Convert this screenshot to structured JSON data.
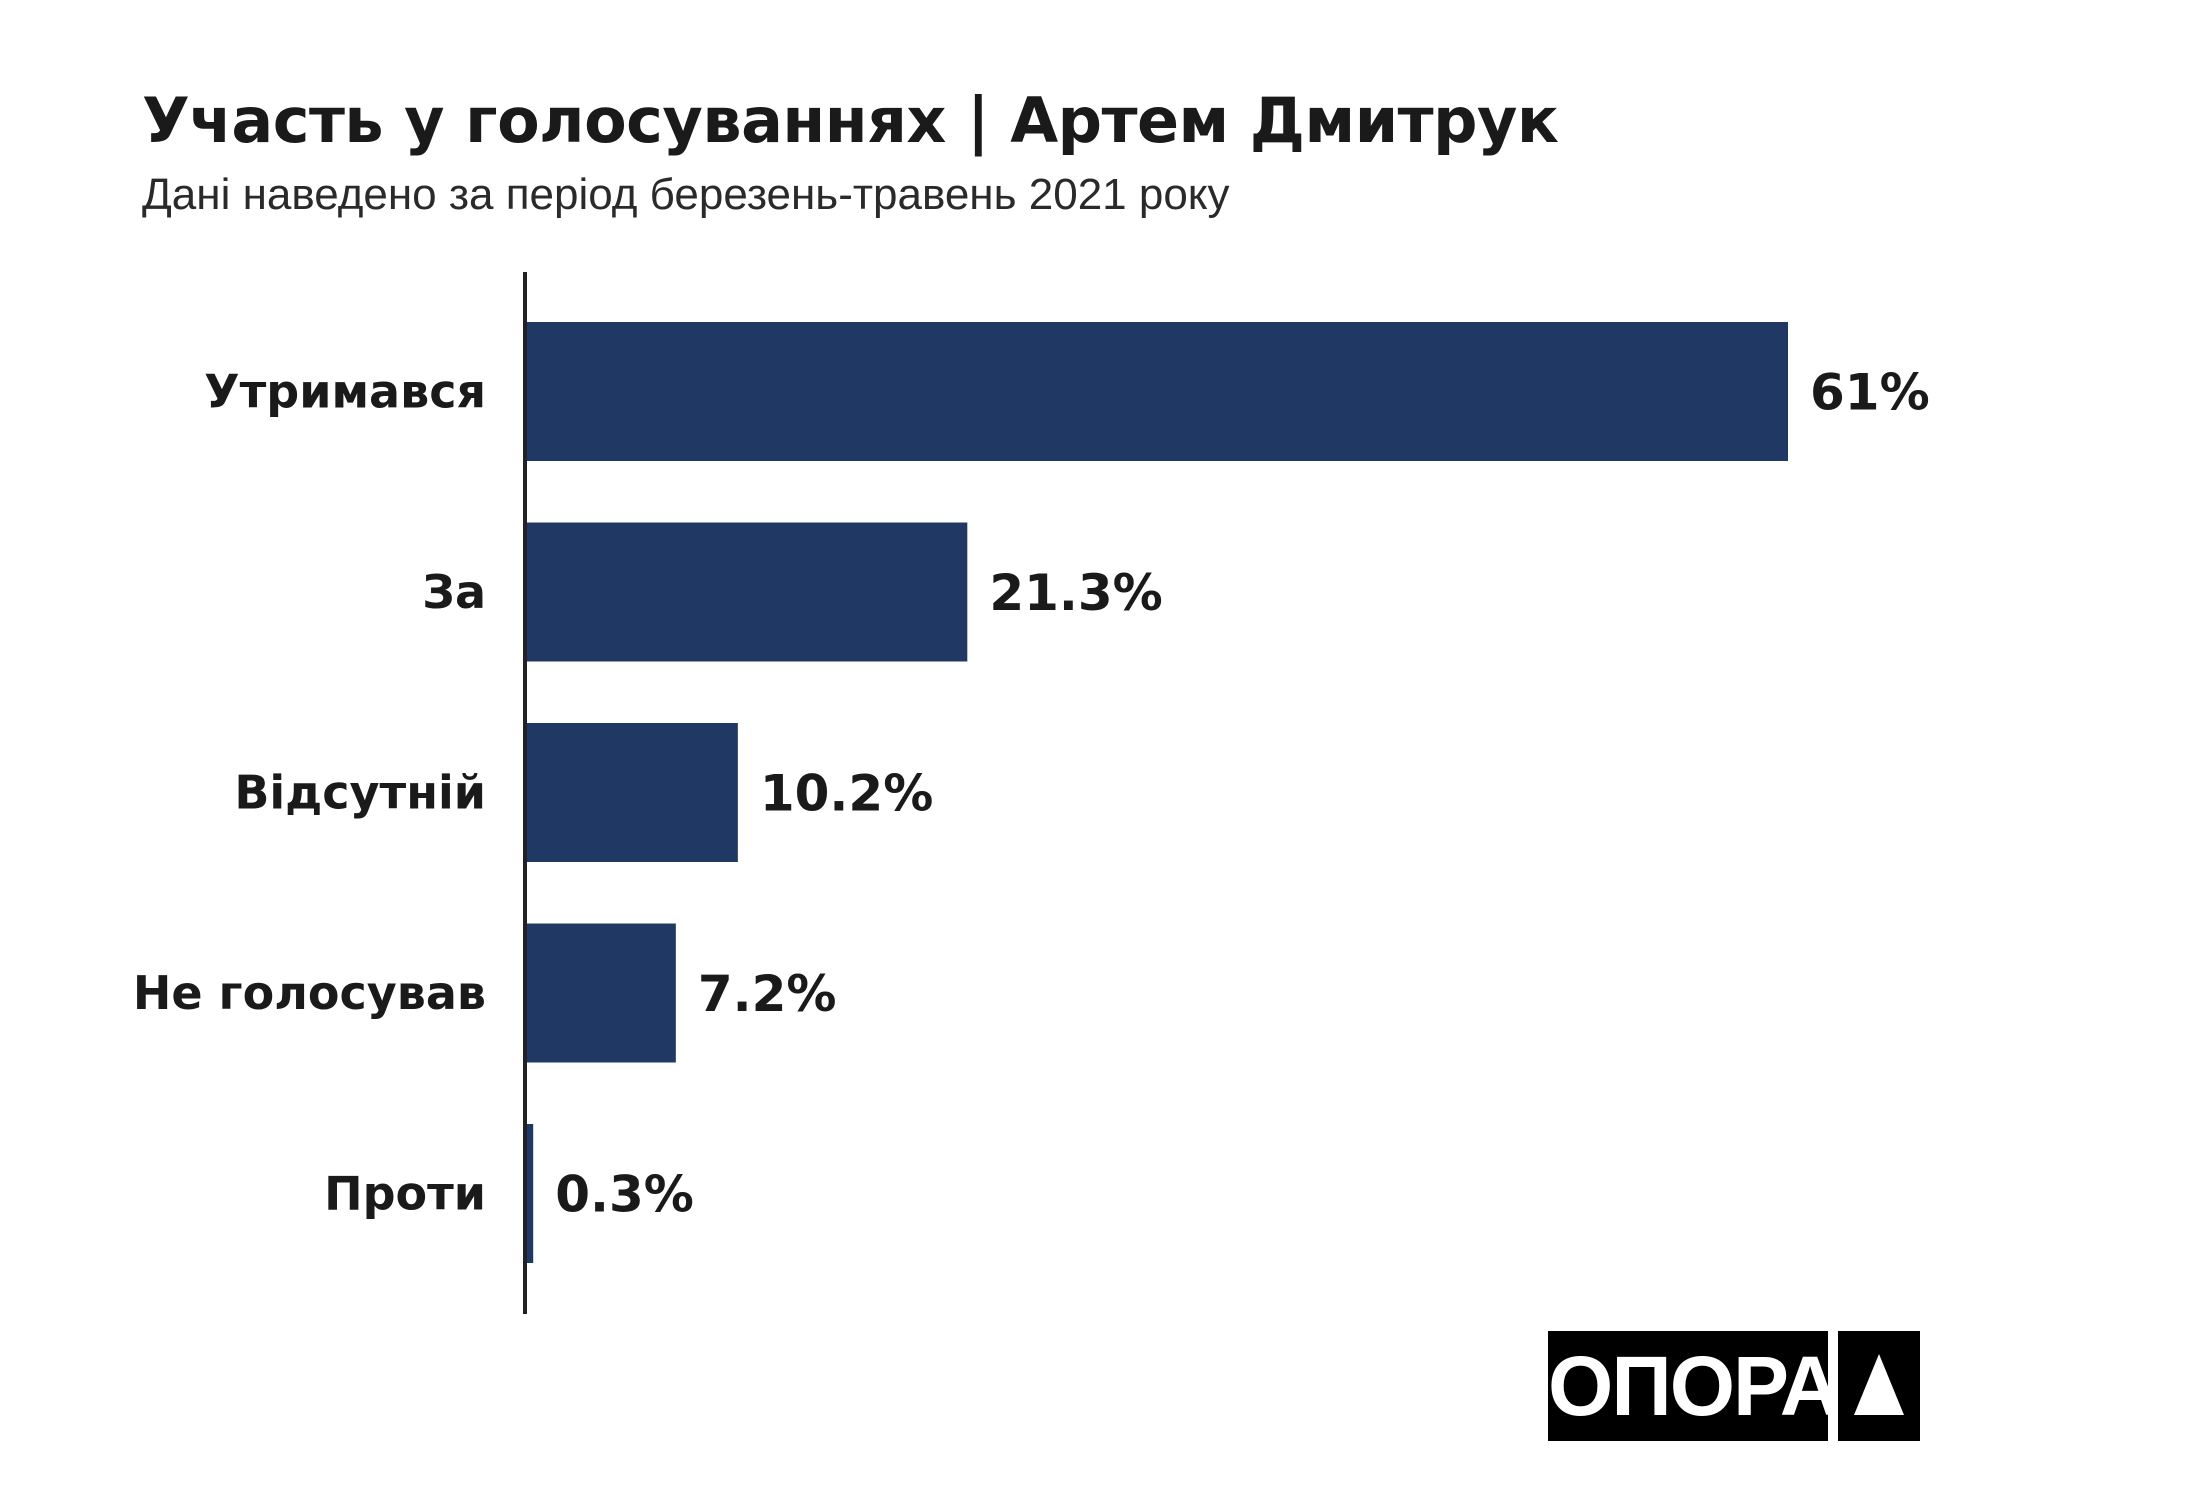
{
  "chart_data": {
    "type": "bar",
    "orientation": "horizontal",
    "title": "Участь у голосуваннях | Артем Дмитрук",
    "subtitle": "Дані наведено за період березень-травень 2021 року",
    "categories": [
      "Утримався",
      "За",
      "Відсутній",
      "Не голосував",
      "Проти"
    ],
    "values": [
      61,
      21.3,
      10.2,
      7.2,
      0.3
    ],
    "value_labels": [
      "61%",
      "21.3%",
      "10.2%",
      "7.2%",
      "0.3%"
    ],
    "xlabel": "",
    "ylabel": "",
    "xlim": [
      0,
      61
    ],
    "grid": false,
    "bar_color": "#1f3864"
  },
  "logo": {
    "text": "ОПОРА"
  }
}
